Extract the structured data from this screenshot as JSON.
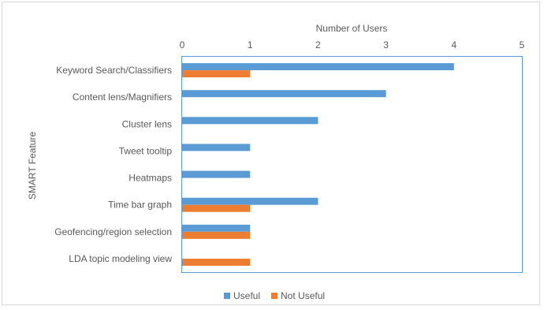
{
  "chart_data": {
    "type": "bar",
    "orientation": "horizontal",
    "title": "",
    "xlabel": "Number of Users",
    "ylabel": "SMART Feature",
    "xlim": [
      0,
      5
    ],
    "xticks": [
      0,
      1,
      2,
      3,
      4,
      5
    ],
    "x_axis_position": "top",
    "grid": false,
    "legend_position": "bottom",
    "categories": [
      "Keyword Search/Classifiers",
      "Content lens/Magnifiers",
      "Cluster lens",
      "Tweet tooltip",
      "Heatmaps",
      "Time bar graph",
      "Geofencing/region selection",
      "LDA topic modeling view"
    ],
    "series": [
      {
        "name": "Useful",
        "color": "#5b9bd5",
        "values": [
          4,
          3,
          2,
          1,
          1,
          2,
          1,
          0
        ]
      },
      {
        "name": "Not Useful",
        "color": "#ed7d31",
        "values": [
          1,
          0,
          0,
          0,
          0,
          1,
          1,
          1
        ]
      }
    ]
  }
}
